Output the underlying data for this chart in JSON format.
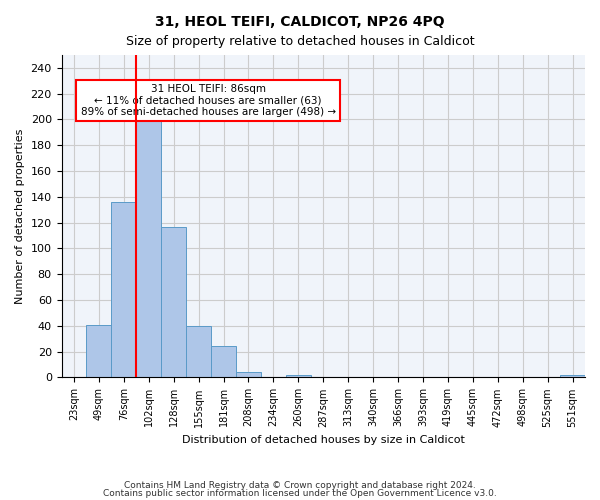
{
  "title1": "31, HEOL TEIFI, CALDICOT, NP26 4PQ",
  "title2": "Size of property relative to detached houses in Caldicot",
  "xlabel": "Distribution of detached houses by size in Caldicot",
  "ylabel": "Number of detached properties",
  "footer1": "Contains HM Land Registry data © Crown copyright and database right 2024.",
  "footer2": "Contains public sector information licensed under the Open Government Licence v3.0.",
  "annotation_line1": "31 HEOL TEIFI: 86sqm",
  "annotation_line2": "← 11% of detached houses are smaller (63)",
  "annotation_line3": "89% of semi-detached houses are larger (498) →",
  "bar_labels": [
    "23sqm",
    "49sqm",
    "76sqm",
    "102sqm",
    "128sqm",
    "155sqm",
    "181sqm",
    "208sqm",
    "234sqm",
    "260sqm",
    "287sqm",
    "313sqm",
    "340sqm",
    "366sqm",
    "393sqm",
    "419sqm",
    "445sqm",
    "472sqm",
    "498sqm",
    "525sqm",
    "551sqm"
  ],
  "bar_values": [
    0,
    41,
    136,
    201,
    117,
    40,
    24,
    4,
    0,
    2,
    0,
    0,
    0,
    0,
    0,
    0,
    0,
    0,
    0,
    0,
    2
  ],
  "bar_color": "#aec6e8",
  "bar_edge_color": "#5a9ac8",
  "red_line_x": 2.5,
  "ylim": [
    0,
    250
  ],
  "yticks": [
    0,
    20,
    40,
    60,
    80,
    100,
    120,
    140,
    160,
    180,
    200,
    220,
    240
  ],
  "grid_color": "#cccccc",
  "background_color": "#f0f4fa"
}
